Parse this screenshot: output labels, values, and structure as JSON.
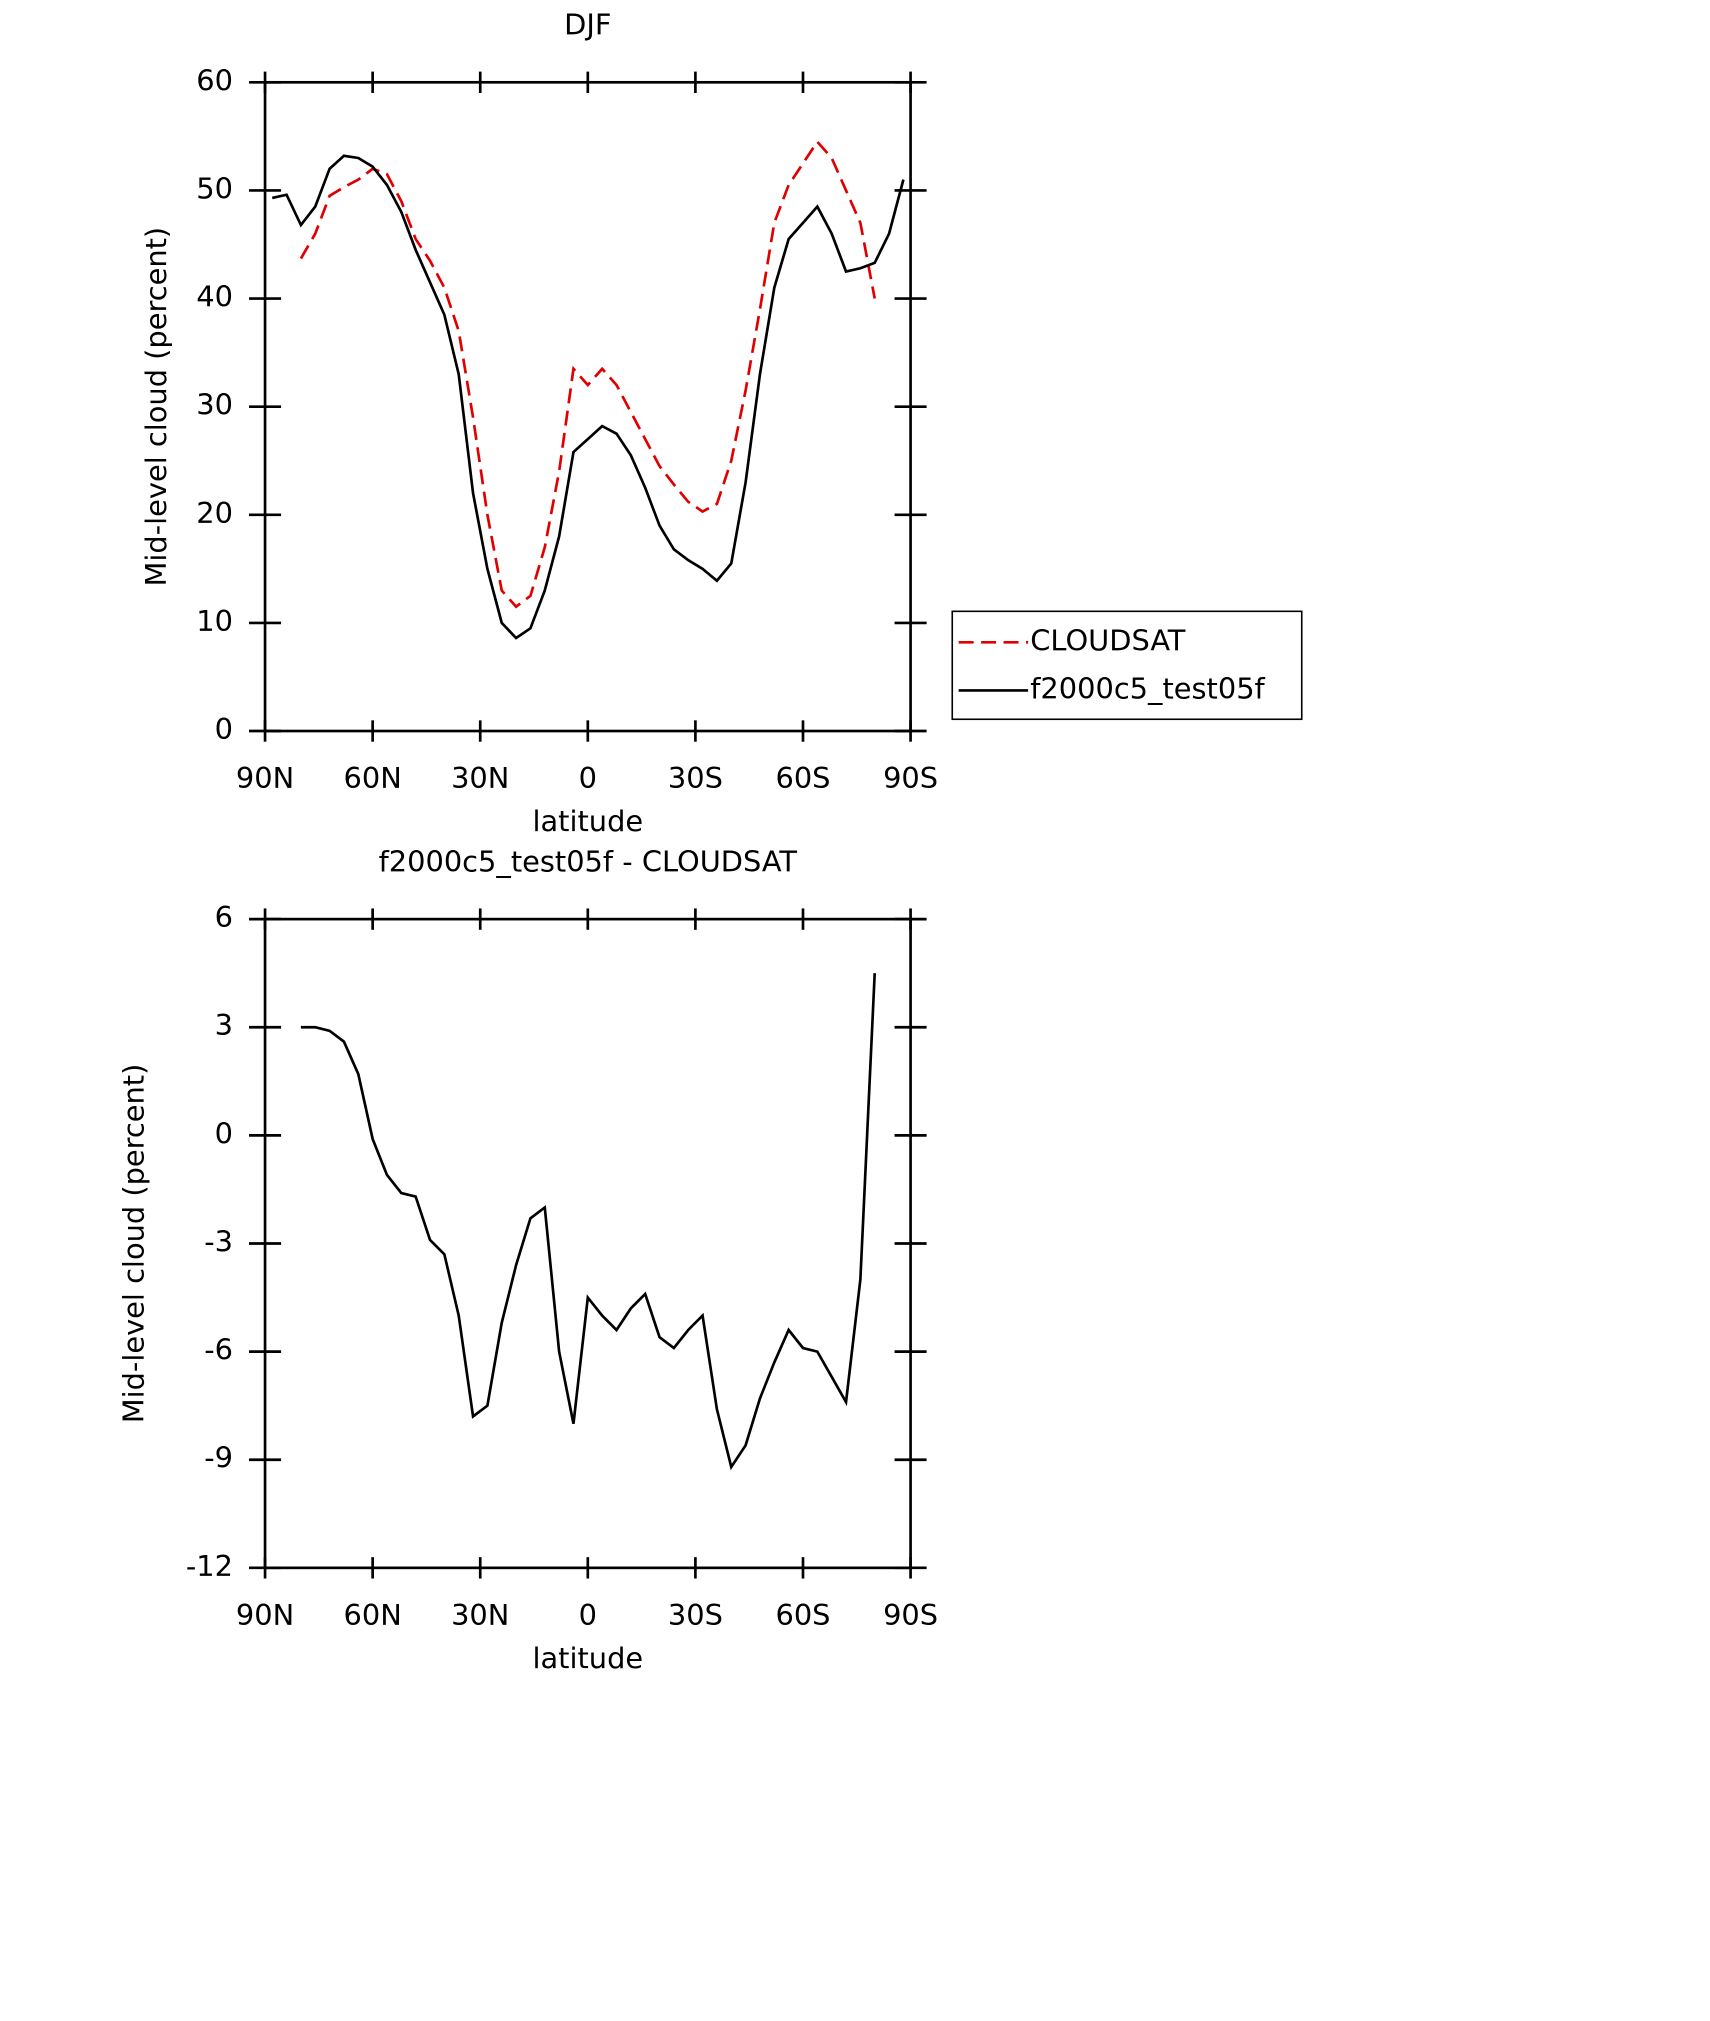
{
  "chart_data": [
    {
      "type": "line",
      "title": "DJF",
      "xlabel": "latitude",
      "ylabel": "Mid-level cloud (percent)",
      "x": [
        88,
        84,
        80,
        76,
        72,
        68,
        64,
        60,
        56,
        52,
        48,
        44,
        40,
        36,
        32,
        28,
        24,
        20,
        16,
        12,
        8,
        4,
        0,
        -4,
        -8,
        -12,
        -16,
        -20,
        -24,
        -28,
        -32,
        -36,
        -40,
        -44,
        -48,
        -52,
        -56,
        -60,
        -64,
        -68,
        -72,
        -76,
        -80,
        -84,
        -88
      ],
      "xlim": [
        90,
        -90
      ],
      "xticks": [
        {
          "value": 90,
          "label": "90N"
        },
        {
          "value": 60,
          "label": "60N"
        },
        {
          "value": 30,
          "label": "30N"
        },
        0,
        {
          "value": -30,
          "label": "30S"
        },
        {
          "value": -60,
          "label": "60S"
        },
        {
          "value": -90,
          "label": "90S"
        }
      ],
      "ylim": [
        0,
        60
      ],
      "yticks": [
        0,
        10,
        20,
        30,
        40,
        50,
        60
      ],
      "legend": "right",
      "series": [
        {
          "name": "CLOUDSAT",
          "color": "#e00000",
          "dash": "dashed",
          "values": [
            null,
            null,
            43.7,
            46,
            49.5,
            50.3,
            51,
            52,
            51.5,
            49,
            45.5,
            43.5,
            41,
            37,
            29,
            20,
            13,
            11.5,
            12.5,
            17,
            24,
            33.5,
            32,
            33.5,
            32,
            29.5,
            27,
            24.5,
            22.8,
            21.2,
            20.3,
            21,
            25,
            31.5,
            39,
            47,
            50.5,
            52.5,
            54.5,
            53,
            50,
            47,
            40,
            null,
            null
          ]
        },
        {
          "name": "f2000c5_test05f",
          "color": "#000000",
          "dash": "solid",
          "values": [
            49.3,
            49.6,
            46.8,
            48.5,
            52,
            53.2,
            53,
            52.2,
            50.5,
            48,
            44.5,
            41.5,
            38.5,
            33,
            22,
            15,
            10,
            8.6,
            9.5,
            13,
            18,
            25.8,
            27,
            28.2,
            27.5,
            25.5,
            22.5,
            19,
            16.8,
            15.8,
            15,
            13.9,
            15.5,
            23,
            33,
            41,
            45.5,
            47,
            48.5,
            46,
            42.5,
            42.8,
            43.3,
            46,
            51
          ]
        }
      ]
    },
    {
      "type": "line",
      "title": "f2000c5_test05f - CLOUDSAT",
      "xlabel": "latitude",
      "ylabel": "Mid-level cloud (percent)",
      "x": [
        88,
        84,
        80,
        76,
        72,
        68,
        64,
        60,
        56,
        52,
        48,
        44,
        40,
        36,
        32,
        28,
        24,
        20,
        16,
        12,
        8,
        4,
        0,
        -4,
        -8,
        -12,
        -16,
        -20,
        -24,
        -28,
        -32,
        -36,
        -40,
        -44,
        -48,
        -52,
        -56,
        -60,
        -64,
        -68,
        -72,
        -76,
        -80,
        -84,
        -88
      ],
      "xlim": [
        90,
        -90
      ],
      "xticks": [
        {
          "value": 90,
          "label": "90N"
        },
        {
          "value": 60,
          "label": "60N"
        },
        {
          "value": 30,
          "label": "30N"
        },
        0,
        {
          "value": -30,
          "label": "30S"
        },
        {
          "value": -60,
          "label": "60S"
        },
        {
          "value": -90,
          "label": "90S"
        }
      ],
      "ylim": [
        -12,
        6
      ],
      "yticks": [
        -12,
        -9,
        -6,
        -3,
        0,
        3,
        6
      ],
      "series": [
        {
          "color": "#000000",
          "dash": "solid",
          "values": [
            null,
            null,
            3.0,
            3.0,
            2.9,
            2.6,
            1.7,
            -0.1,
            -1.1,
            -1.6,
            -1.7,
            -2.9,
            -3.3,
            -5.0,
            -7.8,
            -7.5,
            -5.2,
            -3.6,
            -2.3,
            -2.0,
            -6.0,
            -8.0,
            -4.5,
            -5.0,
            -5.4,
            -4.8,
            -4.4,
            -5.6,
            -5.9,
            -5.4,
            -5.0,
            -7.6,
            -9.2,
            -8.6,
            -7.3,
            -6.3,
            -5.4,
            -5.9,
            -6.0,
            -6.7,
            -7.4,
            -4.0,
            4.5,
            null,
            null
          ]
        }
      ]
    }
  ]
}
